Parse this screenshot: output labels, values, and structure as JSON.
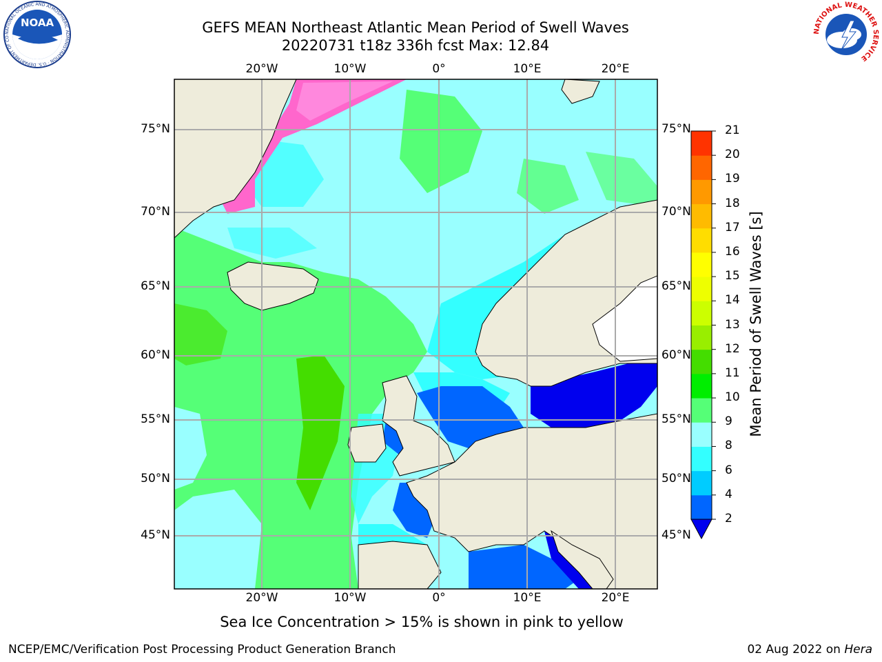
{
  "header": {
    "title_line1": "GEFS MEAN Northeast Atlantic Mean Period of Swell Waves",
    "title_line2": "20220731 t18z 336h fcst   Max: 12.84"
  },
  "axes": {
    "lon_ticks": [
      "20°W",
      "10°W",
      "0°",
      "10°E",
      "20°E"
    ],
    "lat_ticks": [
      "75°N",
      "70°N",
      "65°N",
      "60°N",
      "55°N",
      "50°N",
      "45°N"
    ]
  },
  "colorbar": {
    "label": "Mean Period of Swell Waves [s]",
    "ticks": [
      "2",
      "4",
      "6",
      "8",
      "9",
      "10",
      "11",
      "12",
      "13",
      "14",
      "15",
      "16",
      "17",
      "18",
      "19",
      "20",
      "21"
    ],
    "colors": [
      "#0066ff",
      "#00ccff",
      "#33ffff",
      "#99ffff",
      "#55ff77",
      "#00ee00",
      "#44dd00",
      "#99ee00",
      "#ccff00",
      "#eeff00",
      "#ffff00",
      "#ffdd00",
      "#ffbb00",
      "#ff9900",
      "#ff6600",
      "#ff3300",
      "#ff0000"
    ],
    "under_color": "#0000ee"
  },
  "caption": "Sea Ice Concentration > 15% is shown in pink to yellow",
  "footer": {
    "credit": "NCEP/EMC/Verification Post Processing Product Generation Branch",
    "date": "02 Aug 2022 on ",
    "machine": "Hera"
  },
  "logos": {
    "noaa_text": "NOAA",
    "noaa_ring": "NATIONAL OCEANIC AND ATMOSPHERIC ADMINISTRATION · U.S. DEPARTMENT OF COMMERCE",
    "nws_ring": "NATIONAL WEATHER SERVICE"
  }
}
